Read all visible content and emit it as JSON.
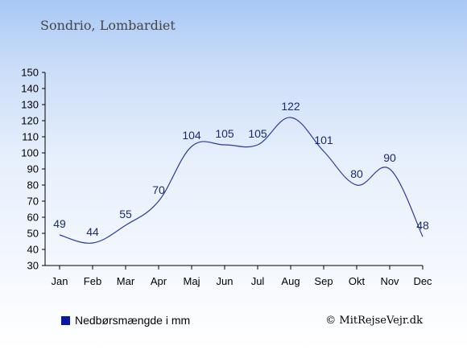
{
  "chart_data": {
    "type": "line",
    "title": "Sondrio, Lombardiet",
    "categories": [
      "Jan",
      "Feb",
      "Mar",
      "Apr",
      "Maj",
      "Jun",
      "Jul",
      "Aug",
      "Sep",
      "Okt",
      "Nov",
      "Dec"
    ],
    "series": [
      {
        "name": "Nedbørsmængde i mm",
        "values": [
          49,
          44,
          55,
          70,
          104,
          105,
          105,
          122,
          101,
          80,
          90,
          48
        ],
        "color": "#2a3a9f"
      }
    ],
    "ylim": [
      30,
      150
    ],
    "yticks": [
      30,
      40,
      50,
      60,
      70,
      80,
      90,
      100,
      110,
      120,
      130,
      140,
      150
    ],
    "grid": false,
    "legend_position": "bottom-left",
    "legend_marker_color": "#0a1aa0",
    "credit": "© MitRejseVejr.dk"
  }
}
